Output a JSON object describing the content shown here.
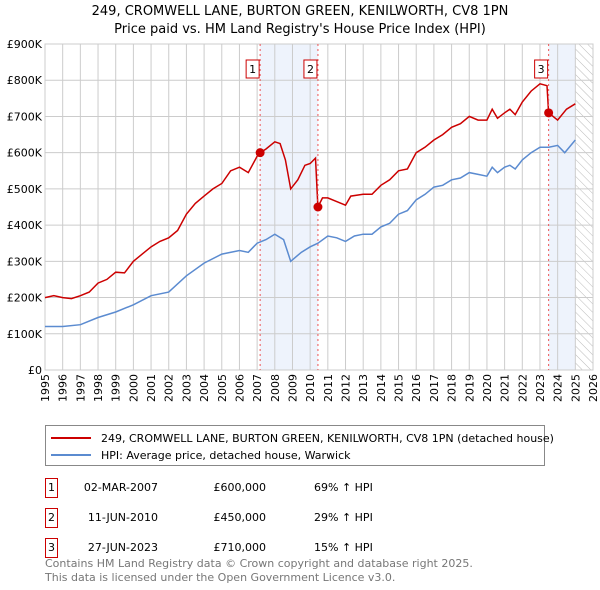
{
  "chart_data": {
    "type": "line",
    "title": "249, CROMWELL LANE, BURTON GREEN, KENILWORTH, CV8 1PN",
    "subtitle": "Price paid vs. HM Land Registry's House Price Index (HPI)",
    "xlim": [
      1995,
      2026
    ],
    "ylim": [
      0,
      900000
    ],
    "x_ticks": [
      "1995",
      "1996",
      "1997",
      "1998",
      "1999",
      "2000",
      "2001",
      "2002",
      "2003",
      "2004",
      "2005",
      "2006",
      "2007",
      "2008",
      "2009",
      "2010",
      "2011",
      "2012",
      "2013",
      "2014",
      "2015",
      "2016",
      "2017",
      "2018",
      "2019",
      "2020",
      "2021",
      "2022",
      "2023",
      "2024",
      "2025",
      "2026"
    ],
    "y_ticks": [
      {
        "v": 0,
        "label": "£0"
      },
      {
        "v": 100000,
        "label": "£100K"
      },
      {
        "v": 200000,
        "label": "£200K"
      },
      {
        "v": 300000,
        "label": "£300K"
      },
      {
        "v": 400000,
        "label": "£400K"
      },
      {
        "v": 500000,
        "label": "£500K"
      },
      {
        "v": 600000,
        "label": "£600K"
      },
      {
        "v": 700000,
        "label": "£700K"
      },
      {
        "v": 800000,
        "label": "£800K"
      },
      {
        "v": 900000,
        "label": "£900K"
      }
    ],
    "grid": true,
    "shaded_periods": [
      [
        2007.17,
        2010.44
      ],
      [
        2023.49,
        2025.0
      ]
    ],
    "forecast_hatch_from": 2025.0,
    "series": [
      {
        "name": "249, CROMWELL LANE, BURTON GREEN, KENILWORTH, CV8 1PN (detached house)",
        "color": "#cc0000",
        "x": [
          1995,
          1995.5,
          1996,
          1996.5,
          1997,
          1997.5,
          1998,
          1998.5,
          1999,
          1999.5,
          2000,
          2000.5,
          2001,
          2001.5,
          2002,
          2002.5,
          2003,
          2003.5,
          2004,
          2004.5,
          2005,
          2005.5,
          2006,
          2006.5,
          2007,
          2007.17,
          2007.5,
          2008,
          2008.3,
          2008.6,
          2008.9,
          2009.3,
          2009.7,
          2010,
          2010.3,
          2010.44,
          2010.7,
          2011,
          2011.5,
          2012,
          2012.3,
          2013,
          2013.5,
          2014,
          2014.5,
          2015,
          2015.5,
          2016,
          2016.5,
          2017,
          2017.5,
          2018,
          2018.5,
          2019,
          2019.5,
          2020,
          2020.3,
          2020.6,
          2021,
          2021.3,
          2021.6,
          2022,
          2022.5,
          2023,
          2023.4,
          2023.49,
          2024,
          2024.5,
          2025
        ],
        "y": [
          200000,
          205000,
          200000,
          197000,
          205000,
          215000,
          240000,
          250000,
          270000,
          268000,
          300000,
          320000,
          340000,
          355000,
          365000,
          385000,
          430000,
          460000,
          480000,
          500000,
          515000,
          550000,
          560000,
          545000,
          590000,
          600000,
          610000,
          630000,
          625000,
          580000,
          500000,
          525000,
          565000,
          570000,
          585000,
          450000,
          475000,
          475000,
          465000,
          455000,
          480000,
          485000,
          485000,
          510000,
          525000,
          550000,
          555000,
          600000,
          615000,
          635000,
          650000,
          670000,
          680000,
          700000,
          690000,
          690000,
          720000,
          695000,
          710000,
          720000,
          705000,
          740000,
          770000,
          790000,
          785000,
          710000,
          690000,
          720000,
          735000
        ]
      },
      {
        "name": "HPI: Average price, detached house, Warwick",
        "color": "#5b8bd0",
        "x": [
          1995,
          1996,
          1997,
          1998,
          1999,
          2000,
          2001,
          2002,
          2003,
          2004,
          2005,
          2006,
          2006.5,
          2007,
          2007.5,
          2008,
          2008.5,
          2008.9,
          2009.5,
          2010,
          2010.44,
          2011,
          2011.5,
          2012,
          2012.5,
          2013,
          2013.5,
          2014,
          2014.5,
          2015,
          2015.5,
          2016,
          2016.5,
          2017,
          2017.5,
          2018,
          2018.5,
          2019,
          2019.5,
          2020,
          2020.3,
          2020.6,
          2021,
          2021.3,
          2021.6,
          2022,
          2022.5,
          2023,
          2023.5,
          2024,
          2024.4,
          2025
        ],
        "y": [
          120000,
          120000,
          125000,
          145000,
          160000,
          180000,
          205000,
          215000,
          260000,
          295000,
          320000,
          330000,
          325000,
          350000,
          360000,
          375000,
          360000,
          300000,
          325000,
          340000,
          350000,
          370000,
          365000,
          355000,
          370000,
          375000,
          375000,
          395000,
          405000,
          430000,
          440000,
          470000,
          485000,
          505000,
          510000,
          525000,
          530000,
          545000,
          540000,
          535000,
          560000,
          545000,
          560000,
          565000,
          555000,
          580000,
          600000,
          615000,
          615000,
          620000,
          600000,
          635000
        ]
      }
    ],
    "sales": [
      {
        "n": "1",
        "date": "02-MAR-2007",
        "price": "£600,000",
        "hpi": "69% ↑ HPI",
        "x": 2007.17,
        "y": 600000
      },
      {
        "n": "2",
        "date": "11-JUN-2010",
        "price": "£450,000",
        "hpi": "29% ↑ HPI",
        "x": 2010.44,
        "y": 450000
      },
      {
        "n": "3",
        "date": "27-JUN-2023",
        "price": "£710,000",
        "hpi": "15% ↑ HPI",
        "x": 2023.49,
        "y": 710000
      }
    ]
  },
  "footer": {
    "line1": "Contains HM Land Registry data © Crown copyright and database right 2025.",
    "line2": "This data is licensed under the Open Government Licence v3.0."
  }
}
